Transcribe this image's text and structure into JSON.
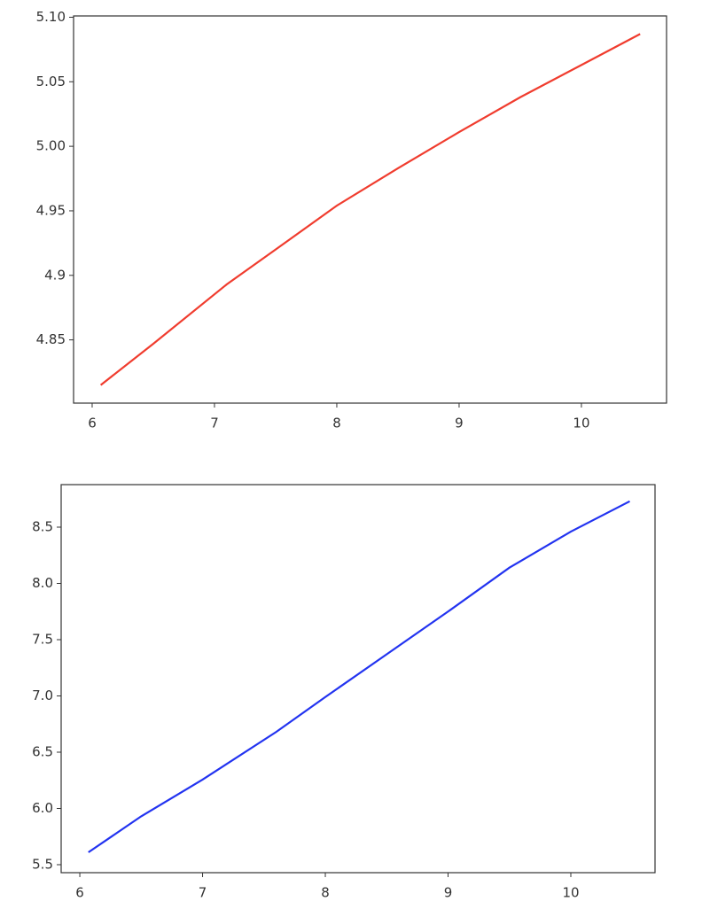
{
  "chart_data": [
    {
      "type": "line",
      "x": [
        6.07,
        6.5,
        7.1,
        7.5,
        8,
        8.5,
        9,
        9.5,
        10,
        10.48
      ],
      "series": [
        {
          "color": "#f03c2e",
          "values": [
            4.815,
            4.847,
            4.893,
            4.92,
            4.954,
            4.983,
            5.011,
            5.038,
            5.063,
            5.087
          ]
        }
      ],
      "xlim": [
        5.848,
        10.696
      ],
      "xticks": [
        6,
        7,
        8,
        9,
        10
      ],
      "ylim": [
        4.801,
        5.101
      ],
      "yticks": [
        4.85,
        4.9,
        4.95,
        {
          "value": 5,
          "label": "5.00"
        },
        5.05,
        {
          "value": 5.1,
          "label": "5.10"
        }
      ]
    },
    {
      "type": "line",
      "x": [
        6.07,
        6.5,
        7,
        7.6,
        8,
        8.5,
        9,
        9.5,
        10,
        10.48
      ],
      "series": [
        {
          "color": "#2233f0",
          "values": [
            5.61,
            5.93,
            6.256,
            6.68,
            6.99,
            7.37,
            7.75,
            8.14,
            8.46,
            8.73
          ]
        }
      ],
      "xlim": [
        5.848,
        10.686
      ],
      "xticks": [
        6,
        7,
        8,
        9,
        10
      ],
      "ylim": [
        5.429,
        8.878
      ],
      "yticks": [
        5.5,
        {
          "value": 6,
          "label": "6.0"
        },
        6.5,
        {
          "value": 7,
          "label": "7.0"
        },
        7.5,
        {
          "value": 8,
          "label": "8.0"
        },
        8.5
      ]
    }
  ]
}
